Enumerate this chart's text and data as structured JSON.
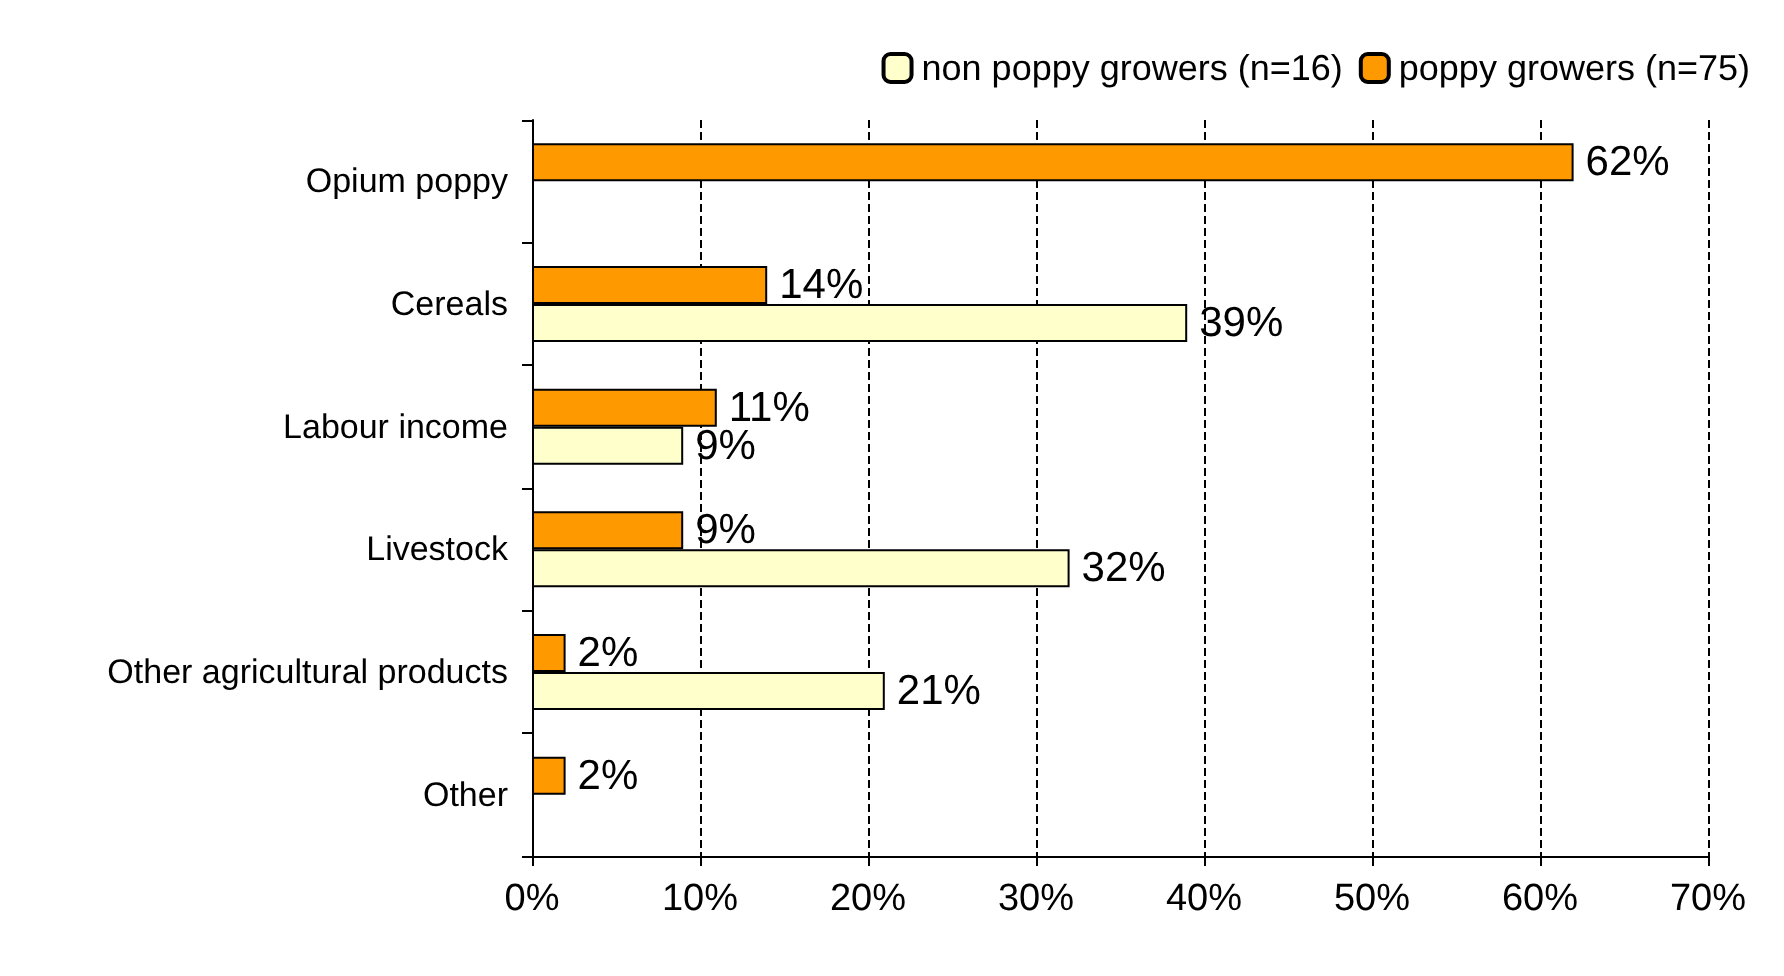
{
  "chart_data": {
    "type": "bar",
    "orientation": "horizontal",
    "categories": [
      "Opium poppy",
      "Cereals",
      "Labour income",
      "Livestock",
      "Other agricultural products",
      "Other"
    ],
    "series": [
      {
        "name": "non poppy growers (n=16)",
        "color": "#ffffcc",
        "values": [
          null,
          39,
          9,
          32,
          21,
          null
        ],
        "value_labels": [
          null,
          "39%",
          "9%",
          "32%",
          "21%",
          null
        ]
      },
      {
        "name": "poppy growers (n=75)",
        "color": "#ff9900",
        "values": [
          62,
          14,
          11,
          9,
          2,
          2
        ],
        "value_labels": [
          "62%",
          "14%",
          "11%",
          "9%",
          "2%",
          "2%"
        ]
      }
    ],
    "xlim": [
      0,
      70
    ],
    "xticks": [
      {
        "value": 0,
        "label": "0%"
      },
      {
        "value": 10,
        "label": "10%"
      },
      {
        "value": 20,
        "label": "20%"
      },
      {
        "value": 30,
        "label": "30%"
      },
      {
        "value": 40,
        "label": "40%"
      },
      {
        "value": 50,
        "label": "50%"
      },
      {
        "value": 60,
        "label": "60%"
      },
      {
        "value": 70,
        "label": "70%"
      }
    ],
    "grid": "x",
    "legend": "top right"
  }
}
